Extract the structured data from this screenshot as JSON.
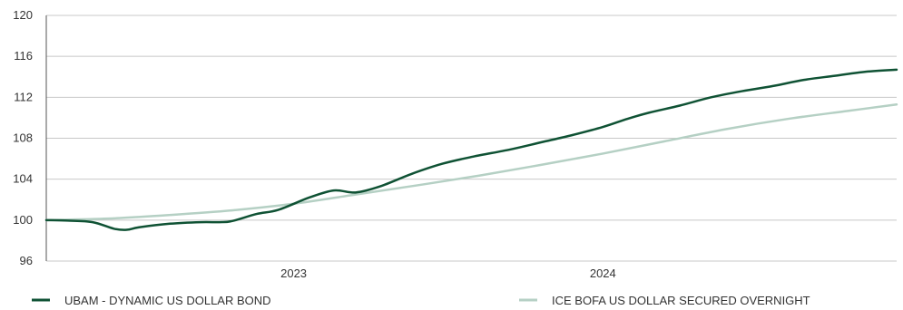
{
  "chart_data": {
    "type": "line",
    "title": "",
    "xlabel": "",
    "ylabel": "",
    "ylim": [
      96,
      120
    ],
    "yticks": [
      96,
      100,
      104,
      108,
      112,
      116,
      120
    ],
    "xlim": [
      2022.2,
      2024.95
    ],
    "xticks": [
      {
        "label": "2023",
        "x": 2023.0
      },
      {
        "label": "2024",
        "x": 2024.0
      }
    ],
    "grid": "horizontal",
    "legend_position": "bottom",
    "series": [
      {
        "name": "UBAM - DYNAMIC US DOLLAR BOND",
        "color": "#0f5234",
        "x": [
          2022.2,
          2022.27,
          2022.35,
          2022.42,
          2022.46,
          2022.5,
          2022.6,
          2022.7,
          2022.76,
          2022.8,
          2022.88,
          2022.95,
          2023.05,
          2023.13,
          2023.2,
          2023.28,
          2023.38,
          2023.48,
          2023.58,
          2023.7,
          2023.8,
          2023.9,
          2024.0,
          2024.08,
          2024.15,
          2024.25,
          2024.35,
          2024.45,
          2024.55,
          2024.65,
          2024.75,
          2024.85,
          2024.95
        ],
        "values": [
          100.0,
          99.95,
          99.8,
          99.15,
          99.05,
          99.3,
          99.65,
          99.8,
          99.8,
          99.9,
          100.6,
          101.0,
          102.2,
          102.9,
          102.7,
          103.3,
          104.5,
          105.5,
          106.2,
          106.9,
          107.6,
          108.3,
          109.1,
          109.9,
          110.5,
          111.2,
          112.0,
          112.6,
          113.1,
          113.7,
          114.1,
          114.5,
          114.7
        ]
      },
      {
        "name": "ICE BOFA US DOLLAR SECURED OVERNIGHT",
        "color": "#b5d0c4",
        "x": [
          2022.2,
          2022.4,
          2022.6,
          2022.8,
          2023.0,
          2023.2,
          2023.4,
          2023.6,
          2023.8,
          2024.0,
          2024.2,
          2024.4,
          2024.6,
          2024.8,
          2024.95
        ],
        "values": [
          100.0,
          100.15,
          100.5,
          100.95,
          101.6,
          102.5,
          103.4,
          104.35,
          105.4,
          106.5,
          107.7,
          108.9,
          109.9,
          110.7,
          111.3
        ]
      }
    ]
  }
}
